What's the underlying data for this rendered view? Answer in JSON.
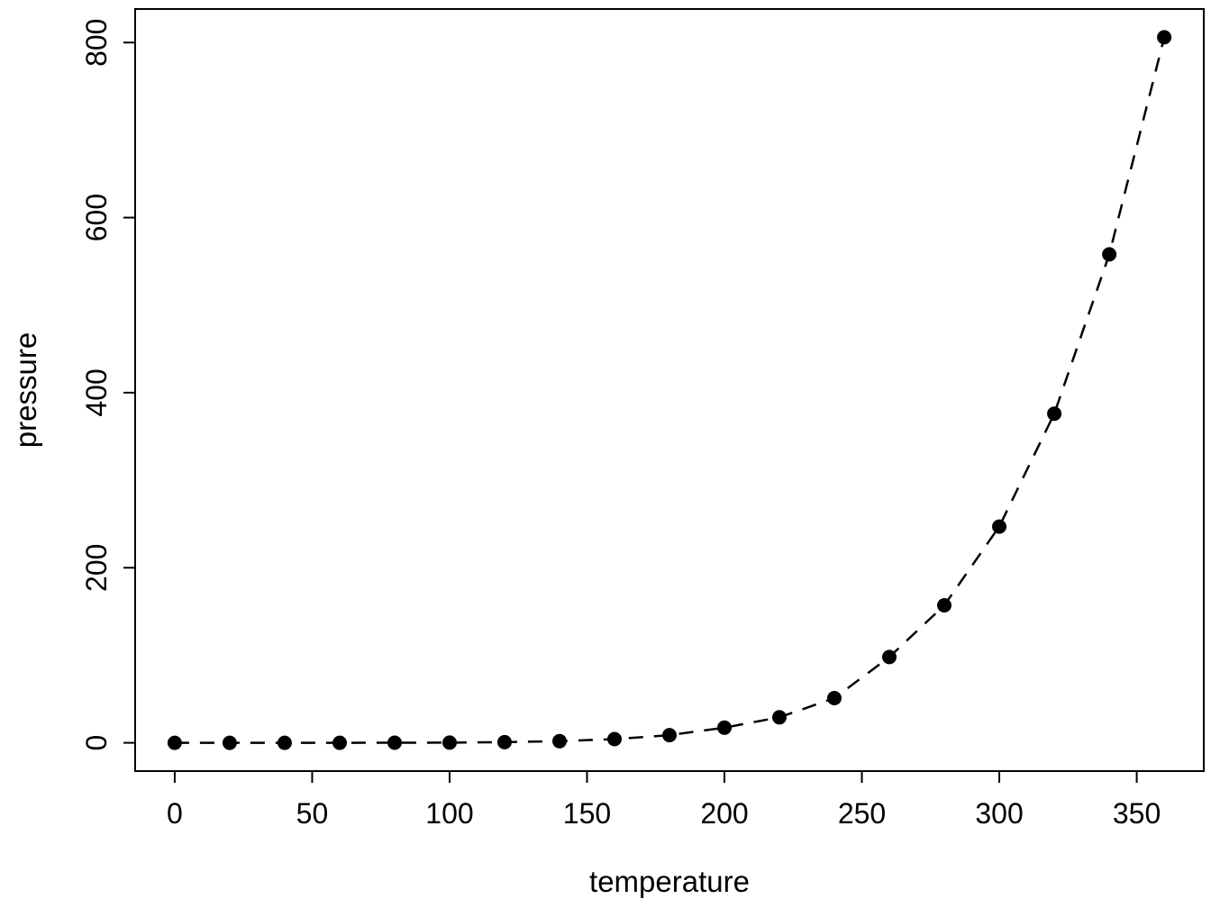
{
  "figure": {
    "background": "#ffffff",
    "foreground": "#000000"
  },
  "chart_data": {
    "type": "line",
    "title": "",
    "xlabel": "temperature",
    "ylabel": "pressure",
    "x": [
      0,
      20,
      40,
      60,
      80,
      100,
      120,
      140,
      160,
      180,
      200,
      220,
      240,
      260,
      280,
      300,
      320,
      340,
      360
    ],
    "y": [
      0.0002,
      0.0012,
      0.006,
      0.03,
      0.09,
      0.27,
      0.75,
      1.85,
      4.2,
      8.8,
      17.3,
      29.1,
      51.1,
      98.0,
      157.0,
      247.0,
      376.0,
      558.0,
      806.0
    ],
    "x_ticks": [
      0,
      50,
      100,
      150,
      200,
      250,
      300,
      350
    ],
    "y_ticks": [
      0,
      200,
      400,
      600,
      800
    ],
    "xlim": [
      -14.4,
      374.4
    ],
    "ylim": [
      -32.3,
      838.3
    ],
    "line_style": "dashed",
    "marker": "filled-circle",
    "grid": false,
    "legend": null
  }
}
